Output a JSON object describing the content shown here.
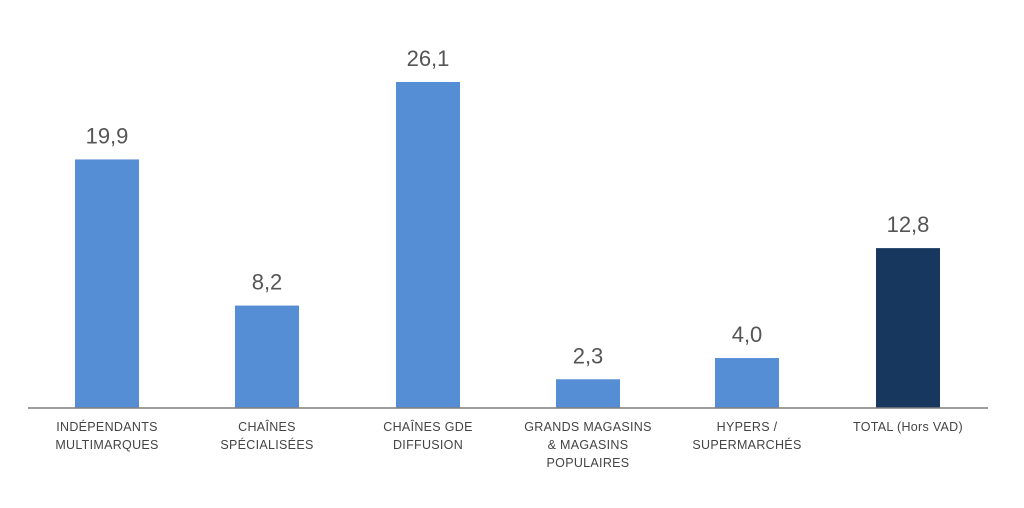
{
  "chart_data": {
    "type": "bar",
    "categories": [
      [
        "INDÉPENDANTS",
        "MULTIMARQUES"
      ],
      [
        "CHAÎNES",
        "SPÉCIALISÉES"
      ],
      [
        "CHAÎNES GDE",
        "DIFFUSION"
      ],
      [
        "GRANDS MAGASINS",
        "& MAGASINS",
        "POPULAIRES"
      ],
      [
        "HYPERS /",
        "SUPERMARCHÉS"
      ],
      [
        "TOTAL (Hors VAD)"
      ]
    ],
    "values": [
      19.9,
      8.2,
      26.1,
      2.3,
      4.0,
      12.8
    ],
    "value_labels": [
      "19,9",
      "8,2",
      "26,1",
      "2,3",
      "4,0",
      "12,8"
    ],
    "ylim": [
      0,
      26.1
    ],
    "grid": false,
    "legend": "none",
    "colors": {
      "bar": "#558ed5",
      "total": "#17375e",
      "axis": "#7f7f7f"
    },
    "highlight_index": 5
  }
}
